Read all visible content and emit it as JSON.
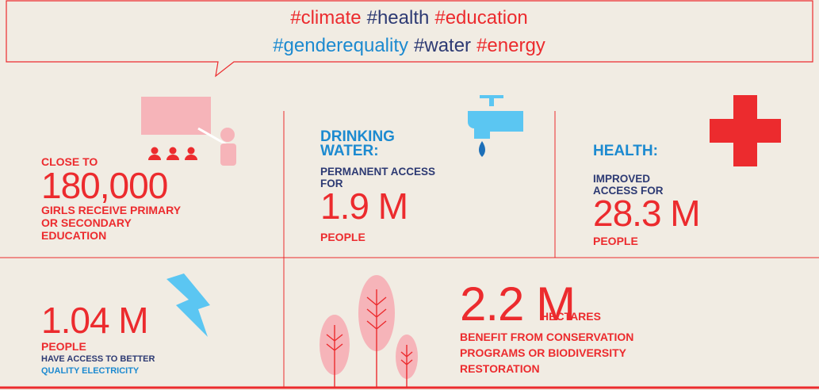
{
  "header": {
    "hashtags": [
      [
        "#climate",
        "#health",
        "#education"
      ],
      [
        "#genderequality",
        "#water",
        "#energy"
      ]
    ]
  },
  "cells": [
    {
      "intro": "CLOSE TO",
      "figure": "180,000",
      "lines": [
        "GIRLS RECEIVE PRIMARY",
        "OR SECONDARY",
        "EDUCATION"
      ]
    },
    {
      "heading": [
        "DRINKING",
        "WATER:"
      ],
      "intro": [
        "PERMANENT ACCESS",
        "FOR"
      ],
      "figure": "1.9 M",
      "lines": [
        "PEOPLE"
      ]
    },
    {
      "heading": [
        "HEALTH:"
      ],
      "intro": [
        "IMPROVED",
        "ACCESS FOR"
      ],
      "figure": "28.3 M",
      "lines": [
        "PEOPLE"
      ]
    },
    {
      "figure": "1.04 M",
      "lines": [
        "PEOPLE",
        "HAVE ACCESS TO BETTER",
        "QUALITY ELECTRICITY"
      ]
    },
    {
      "figure": "2.2 M",
      "unit": "HECTARES",
      "lines": [
        "BENEFIT FROM CONSERVATION",
        "PROGRAMS OR BIODIVERSITY",
        "RESTORATION"
      ]
    }
  ]
}
